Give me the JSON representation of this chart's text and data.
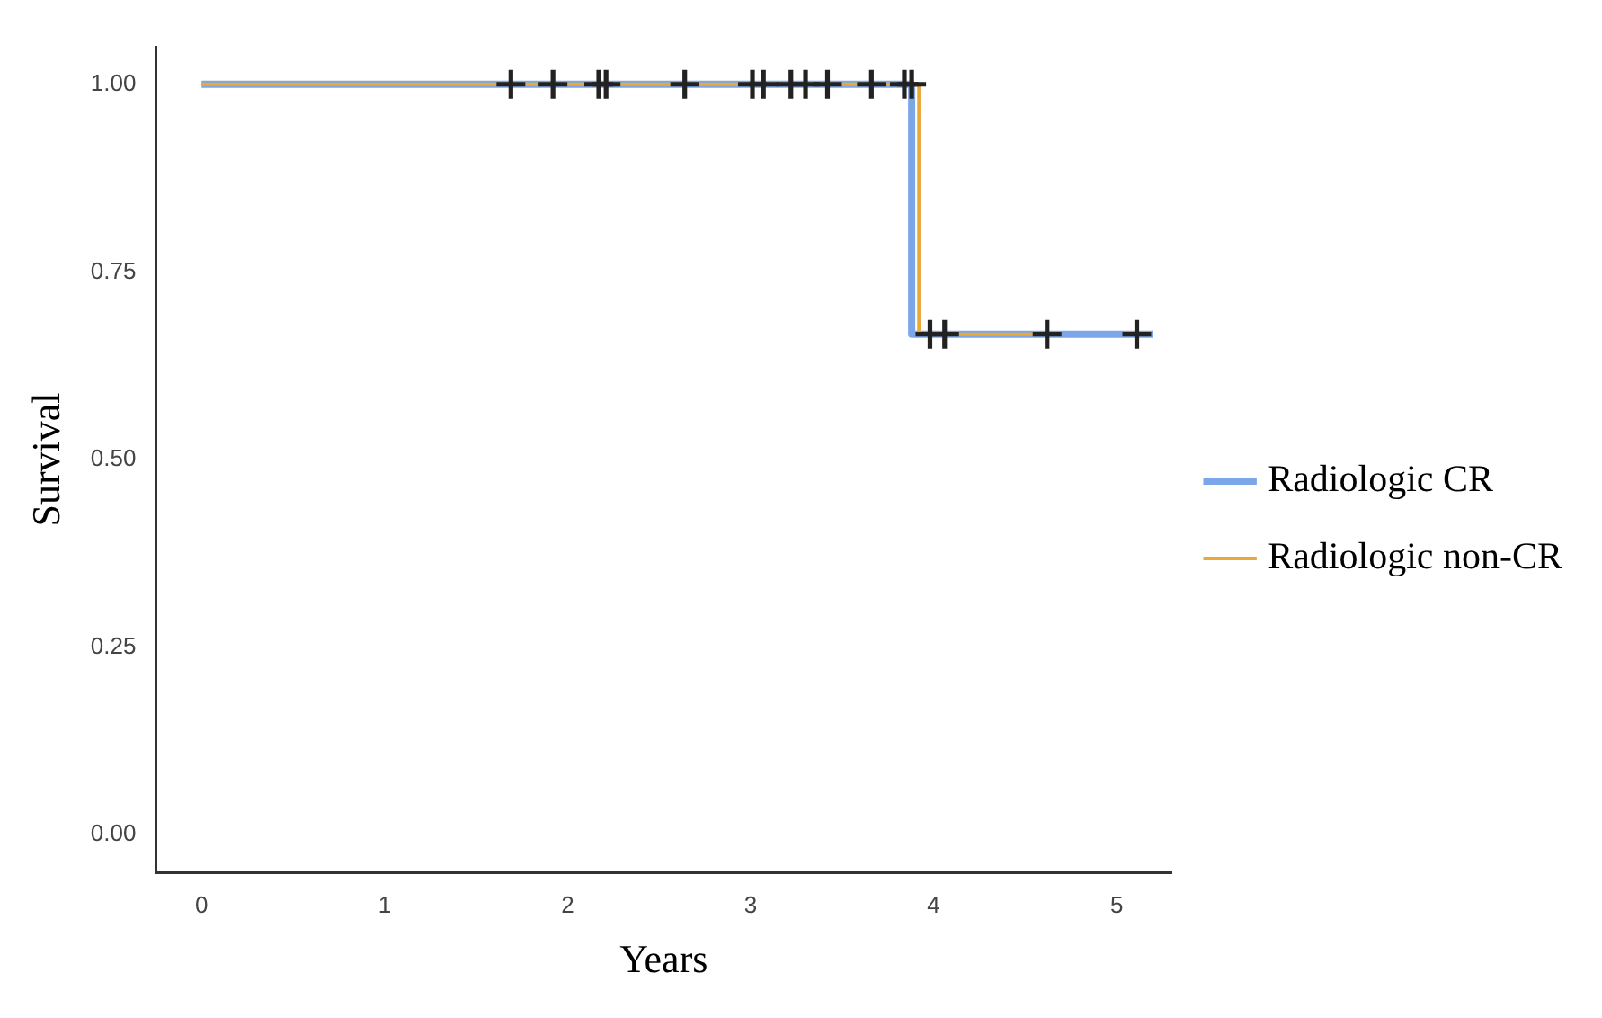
{
  "chart_data": {
    "type": "step",
    "xlabel": "Years",
    "ylabel": "Survival",
    "xlim": [
      -0.25,
      5.3
    ],
    "xticks": [
      0,
      1,
      2,
      3,
      4,
      5
    ],
    "ylim": [
      -0.05,
      1.05
    ],
    "yticks": [
      {
        "value": 0,
        "label": "0.00"
      },
      {
        "value": 0.25,
        "label": "0.25"
      },
      {
        "value": 0.5,
        "label": "0.50"
      },
      {
        "value": 0.75,
        "label": "0.75"
      },
      {
        "value": 1,
        "label": "1.00"
      }
    ],
    "grid": false,
    "legend": "right",
    "line_style": "solid",
    "series": [
      {
        "name": "Radiologic CR",
        "color": "#7ba7e8",
        "x": [
          0,
          3.88,
          5.2
        ],
        "values": [
          1,
          0.667,
          0.667
        ]
      },
      {
        "name": "Radiologic non-CR",
        "color": "#e8a83a",
        "x": [
          0,
          3.92,
          4.6
        ],
        "values": [
          1,
          0.667,
          0.667
        ]
      },
      {
        "type": "scatter",
        "marker": "cross",
        "color": "#222222",
        "x": [
          1.69,
          1.92,
          2.17,
          2.21,
          2.64,
          3.01,
          3.07,
          3.22,
          3.3,
          3.42,
          3.66,
          3.84,
          3.88,
          3.98,
          4.06,
          4.62,
          5.11
        ],
        "values": [
          1,
          1,
          1,
          1,
          1,
          1,
          1,
          1,
          1,
          1,
          1,
          1,
          1,
          0.667,
          0.667,
          0.667,
          0.667
        ]
      }
    ]
  }
}
